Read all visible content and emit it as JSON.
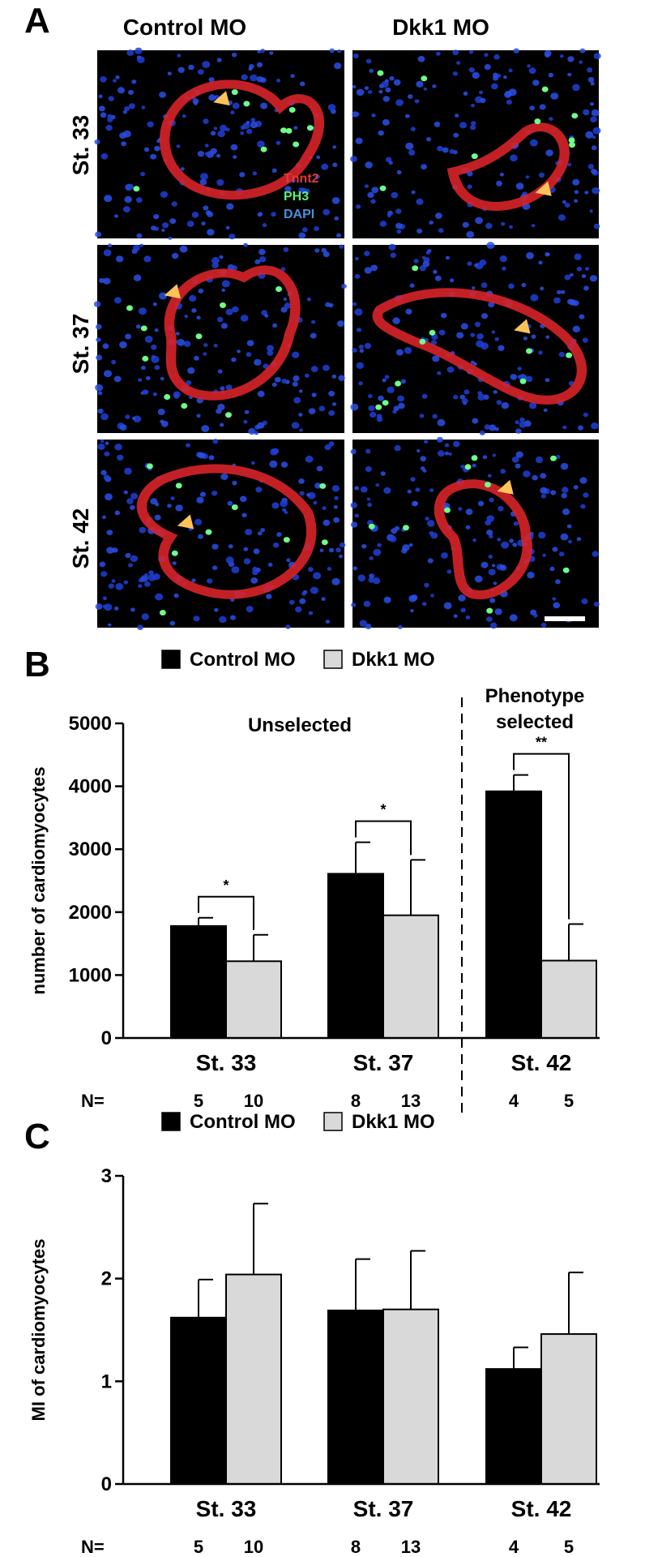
{
  "figure": {
    "panel_a": {
      "letter": "A",
      "columns": [
        "Control MO",
        "Dkk1 MO"
      ],
      "rows": [
        "St. 33",
        "St. 37",
        "St. 42"
      ],
      "stain_legend": [
        {
          "label": "Tnnt2",
          "color": "#e23a3a"
        },
        {
          "label": "PH3",
          "color": "#5cf07a"
        },
        {
          "label": "DAPI",
          "color": "#4a8fe0"
        }
      ]
    },
    "panel_b": {
      "letter": "B"
    },
    "panel_c": {
      "letter": "C"
    }
  },
  "colors": {
    "control": "#000000",
    "dkk1": "#d9d9d9",
    "background": "#ffffff"
  },
  "chart_data": [
    {
      "type": "bar",
      "panel": "B",
      "ylabel": "number of cardiomyocytes",
      "ylim": [
        0,
        5000
      ],
      "yticks": [
        0,
        1000,
        2000,
        3000,
        4000,
        5000
      ],
      "categories": [
        "St. 33",
        "St. 37",
        "St. 42"
      ],
      "series": [
        {
          "name": "Control MO",
          "values": [
            1780,
            2610,
            3920
          ],
          "errors": [
            130,
            500,
            260
          ]
        },
        {
          "name": "Dkk1 MO",
          "values": [
            1220,
            1950,
            1230
          ],
          "errors": [
            420,
            880,
            580
          ]
        }
      ],
      "n_label": "N=",
      "n_values": [
        [
          "5",
          "10"
        ],
        [
          "8",
          "13"
        ],
        [
          "4",
          "5"
        ]
      ],
      "group_labels": [
        {
          "text": "Unselected",
          "over": [
            0,
            1
          ]
        },
        {
          "text": "Phenotype selected",
          "over": [
            2
          ]
        }
      ],
      "significance": [
        "*",
        "*",
        "**"
      ],
      "legend": "top"
    },
    {
      "type": "bar",
      "panel": "C",
      "ylabel": "MI of cardiomyocytes",
      "ylim": [
        0,
        3
      ],
      "yticks": [
        0,
        1,
        2,
        3
      ],
      "categories": [
        "St. 33",
        "St. 37",
        "St. 42"
      ],
      "series": [
        {
          "name": "Control MO",
          "values": [
            1.62,
            1.69,
            1.12
          ],
          "errors": [
            0.37,
            0.5,
            0.21
          ]
        },
        {
          "name": "Dkk1 MO",
          "values": [
            2.04,
            1.7,
            1.46
          ],
          "errors": [
            0.69,
            0.57,
            0.6
          ]
        }
      ],
      "n_label": "N=",
      "n_values": [
        [
          "5",
          "10"
        ],
        [
          "8",
          "13"
        ],
        [
          "4",
          "5"
        ]
      ],
      "legend": "top"
    }
  ]
}
